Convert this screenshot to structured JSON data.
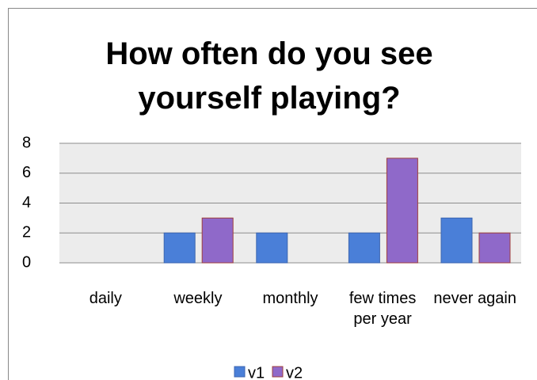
{
  "chart_data": {
    "type": "bar",
    "title": "How often do you see yourself playing?",
    "categories": [
      "daily",
      "weekly",
      "monthly",
      "few times per year",
      "never again"
    ],
    "series": [
      {
        "name": "v1",
        "color": "#4a7fd8",
        "values": [
          0,
          2,
          2,
          2,
          3
        ]
      },
      {
        "name": "v2",
        "color": "#8f69c9",
        "values": [
          0,
          3,
          0,
          7,
          2
        ]
      }
    ],
    "ylim": [
      0,
      8
    ],
    "yticks": [
      0,
      2,
      4,
      6,
      8
    ],
    "grid": true,
    "legend": "bottom"
  }
}
